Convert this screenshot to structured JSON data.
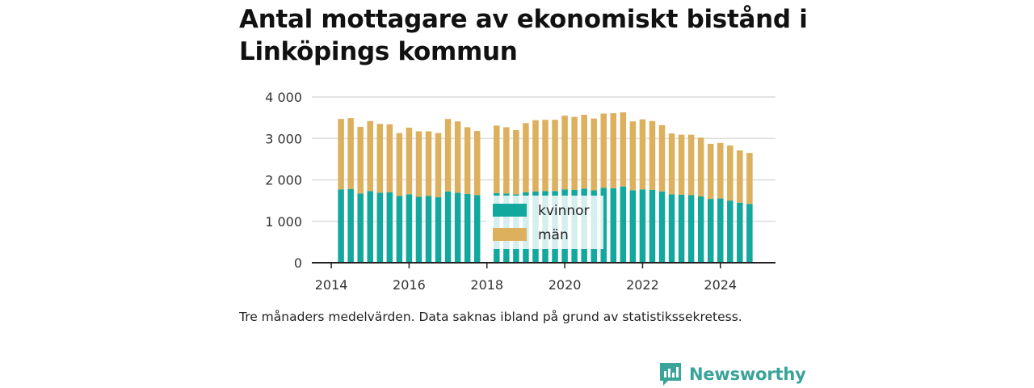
{
  "title": "Antal mottagare av ekonomiskt bistånd i Linköpings kommun",
  "note": "Tre månaders medelvärden. Data saknas ibland på grund av statistikssekretess.",
  "brand": {
    "name": "Newsworthy",
    "color": "#3aa39a"
  },
  "colors": {
    "kvinnor": "#13a89e",
    "man": "#dcb05c",
    "grid": "#dcdcdc",
    "axis": "#222222"
  },
  "chart_data": {
    "type": "bar",
    "stacked": true,
    "x_ticks": [
      "2014",
      "2016",
      "2018",
      "2020",
      "2022",
      "2024"
    ],
    "y_ticks": [
      "0",
      "1 000",
      "2 000",
      "3 000",
      "4 000"
    ],
    "ylim": [
      0,
      4000
    ],
    "xlim": [
      "2013-07",
      "2025-06"
    ],
    "grid": true,
    "legend_position": "center",
    "x": [
      "2014-04",
      "2014-07",
      "2014-10",
      "2015-01",
      "2015-04",
      "2015-07",
      "2015-10",
      "2016-01",
      "2016-04",
      "2016-07",
      "2016-10",
      "2017-01",
      "2017-04",
      "2017-07",
      "2017-10",
      null,
      "2018-04",
      "2018-07",
      "2018-10",
      "2019-01",
      "2019-04",
      "2019-07",
      "2019-10",
      "2020-01",
      "2020-04",
      "2020-07",
      "2020-10",
      "2021-01",
      "2021-04",
      "2021-07",
      "2021-10",
      "2022-01",
      "2022-04",
      "2022-07",
      "2022-10",
      "2023-01",
      "2023-04",
      "2023-07",
      "2023-10",
      "2024-01",
      "2024-04",
      "2024-07",
      "2024-10"
    ],
    "series": [
      {
        "name": "kvinnor",
        "color": "#13a89e",
        "values": [
          1770,
          1780,
          1670,
          1730,
          1690,
          1700,
          1610,
          1650,
          1590,
          1610,
          1580,
          1720,
          1690,
          1660,
          1630,
          null,
          1680,
          1670,
          1650,
          1700,
          1720,
          1730,
          1730,
          1770,
          1760,
          1790,
          1750,
          1810,
          1800,
          1840,
          1750,
          1770,
          1760,
          1720,
          1650,
          1640,
          1630,
          1600,
          1540,
          1550,
          1500,
          1450,
          1420
        ]
      },
      {
        "name": "män",
        "color": "#dcb05c",
        "values": [
          1700,
          1710,
          1610,
          1690,
          1660,
          1640,
          1520,
          1610,
          1580,
          1560,
          1550,
          1750,
          1720,
          1610,
          1550,
          null,
          1630,
          1600,
          1550,
          1670,
          1720,
          1720,
          1720,
          1780,
          1760,
          1780,
          1730,
          1790,
          1810,
          1790,
          1660,
          1690,
          1660,
          1600,
          1470,
          1450,
          1460,
          1420,
          1330,
          1340,
          1330,
          1260,
          1230
        ]
      }
    ]
  }
}
